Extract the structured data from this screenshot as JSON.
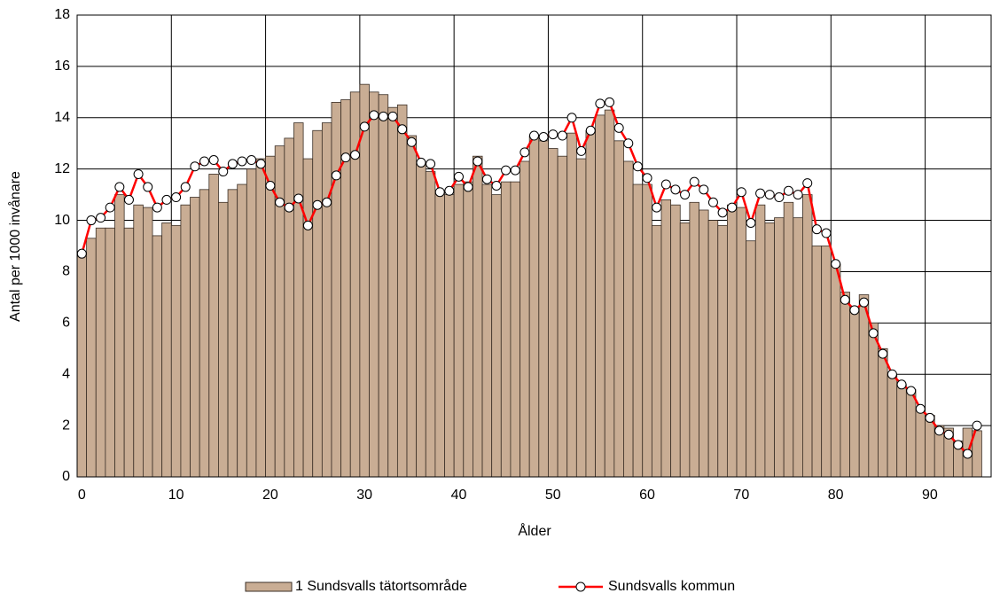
{
  "chart_data": {
    "type": "bar",
    "x_label": "Ålder",
    "y_label": "Antal per 1000 invånare",
    "x": [
      0,
      1,
      2,
      3,
      4,
      5,
      6,
      7,
      8,
      9,
      10,
      11,
      12,
      13,
      14,
      15,
      16,
      17,
      18,
      19,
      20,
      21,
      22,
      23,
      24,
      25,
      26,
      27,
      28,
      29,
      30,
      31,
      32,
      33,
      34,
      35,
      36,
      37,
      38,
      39,
      40,
      41,
      42,
      43,
      44,
      45,
      46,
      47,
      48,
      49,
      50,
      51,
      52,
      53,
      54,
      55,
      56,
      57,
      58,
      59,
      60,
      61,
      62,
      63,
      64,
      65,
      66,
      67,
      68,
      69,
      70,
      71,
      72,
      73,
      74,
      75,
      76,
      77,
      78,
      79,
      80,
      81,
      82,
      83,
      84,
      85,
      86,
      87,
      88,
      89,
      90,
      91,
      92,
      93,
      94,
      95
    ],
    "series": [
      {
        "name": "1 Sundsvalls tätortsområde",
        "type": "bar",
        "color": "#c9ad94",
        "values": [
          8.6,
          9.3,
          9.7,
          9.7,
          11.0,
          9.7,
          10.6,
          10.5,
          9.4,
          9.9,
          9.8,
          10.6,
          10.9,
          11.2,
          11.8,
          10.7,
          11.2,
          11.4,
          12.0,
          12.4,
          12.5,
          12.9,
          13.2,
          13.8,
          12.4,
          13.5,
          13.8,
          14.6,
          14.7,
          15.0,
          15.3,
          15.0,
          14.9,
          14.4,
          14.5,
          13.3,
          12.2,
          11.9,
          11.1,
          11.0,
          11.4,
          11.5,
          12.5,
          11.4,
          11.0,
          11.5,
          11.5,
          12.3,
          13.3,
          13.1,
          12.8,
          12.5,
          13.4,
          12.4,
          13.5,
          14.1,
          14.3,
          13.1,
          12.3,
          11.4,
          11.4,
          9.8,
          10.8,
          10.6,
          9.9,
          10.7,
          10.4,
          10.0,
          9.8,
          10.6,
          10.5,
          9.2,
          10.6,
          9.9,
          10.1,
          10.7,
          10.1,
          11.0,
          9.0,
          9.0,
          8.3,
          7.2,
          6.5,
          7.1,
          6.0,
          5.0,
          4.0,
          3.6,
          3.4,
          2.7,
          2.4,
          2.0,
          1.9,
          1.4,
          1.9,
          1.8
        ]
      },
      {
        "name": "Sundsvalls kommun",
        "type": "line",
        "color": "#ff0000",
        "values": [
          8.7,
          10.0,
          10.1,
          10.5,
          11.3,
          10.8,
          11.8,
          11.3,
          10.5,
          10.8,
          10.9,
          11.3,
          12.1,
          12.3,
          12.35,
          11.9,
          12.2,
          12.3,
          12.35,
          12.2,
          11.35,
          10.7,
          10.5,
          10.85,
          9.8,
          10.6,
          10.7,
          11.75,
          12.45,
          12.55,
          13.65,
          14.1,
          14.05,
          14.05,
          13.55,
          13.05,
          12.25,
          12.2,
          11.1,
          11.15,
          11.7,
          11.3,
          12.3,
          11.6,
          11.35,
          11.95,
          11.95,
          12.65,
          13.3,
          13.25,
          13.35,
          13.3,
          14.0,
          12.7,
          13.5,
          14.55,
          14.6,
          13.6,
          13.0,
          12.1,
          11.65,
          10.5,
          11.4,
          11.2,
          11.0,
          11.5,
          11.2,
          10.7,
          10.3,
          10.5,
          11.1,
          9.9,
          11.05,
          11.0,
          10.9,
          11.15,
          11.0,
          11.45,
          9.65,
          9.5,
          8.3,
          6.9,
          6.5,
          6.8,
          5.6,
          4.8,
          4.0,
          3.6,
          3.35,
          2.65,
          2.3,
          1.8,
          1.65,
          1.25,
          0.9,
          2.0
        ]
      }
    ],
    "xlim": [
      -0.5,
      96.5
    ],
    "xticks": [
      0,
      10,
      20,
      30,
      40,
      50,
      60,
      70,
      80,
      90
    ],
    "ylim": [
      0,
      18
    ],
    "yticks": [
      0,
      2,
      4,
      6,
      8,
      10,
      12,
      14,
      16,
      18
    ],
    "grid": true,
    "legend": "bottom"
  }
}
